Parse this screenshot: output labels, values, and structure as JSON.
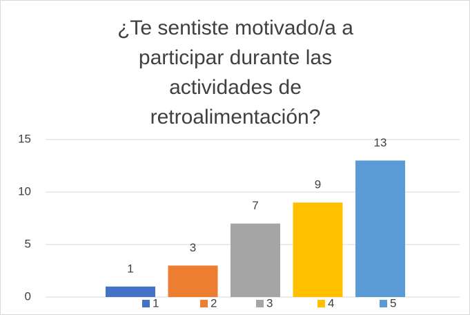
{
  "chart_data": {
    "type": "bar",
    "title": "¿Te sentiste motivado/a a participar durante las actividades de retroalimentación?",
    "series": [
      {
        "name": "1",
        "color": "#4472c4",
        "values": [
          1
        ]
      },
      {
        "name": "2",
        "color": "#ed7d31",
        "values": [
          3
        ]
      },
      {
        "name": "3",
        "color": "#a5a5a5",
        "values": [
          7
        ]
      },
      {
        "name": "4",
        "color": "#ffc000",
        "values": [
          9
        ]
      },
      {
        "name": "5",
        "color": "#5b9bd5",
        "values": [
          13
        ]
      }
    ],
    "ylim": [
      0,
      15
    ],
    "yticks": [
      0,
      5,
      10,
      15
    ],
    "grid": true,
    "legend": "bottom"
  }
}
